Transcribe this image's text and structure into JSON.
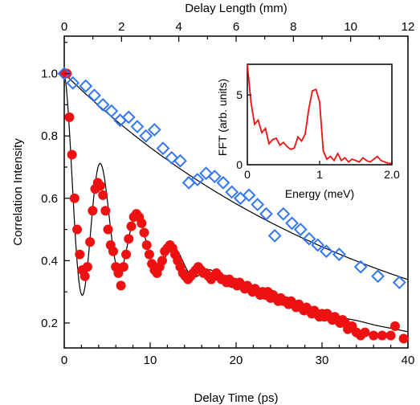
{
  "colors": {
    "red_series": "#ee1111",
    "blue_series": "#3377ee",
    "fit_line": "#000000",
    "inset_line": "#ee1111"
  },
  "chart_data": [
    {
      "type": "scatter",
      "xlabel": "Delay Time (ps)",
      "x2label": "Delay Length (mm)",
      "ylabel": "Correlation Intensity",
      "xlim": [
        0,
        40
      ],
      "x2lim": [
        0,
        12
      ],
      "ylim": [
        0.12,
        1.12
      ],
      "xticks": [
        0,
        10,
        20,
        30,
        40
      ],
      "x2ticks": [
        0,
        2,
        4,
        6,
        8,
        10,
        12
      ],
      "yticks": [
        0.2,
        0.4,
        0.6,
        0.8,
        1.0
      ],
      "ytick_labels": [
        "0.2",
        "0.4",
        "0.6",
        "0.8",
        "1.0"
      ],
      "xtick_labels": [
        "0",
        "10",
        "20",
        "30",
        "40"
      ],
      "x2tick_labels": [
        "0",
        "2",
        "4",
        "6",
        "8",
        "10",
        "12"
      ],
      "grid": false,
      "series": [
        {
          "marker": "circle",
          "color": "#ee1111",
          "points": [
            [
              0.0,
              1.0
            ],
            [
              0.3,
              1.0
            ],
            [
              0.6,
              0.86
            ],
            [
              0.9,
              0.74
            ],
            [
              1.2,
              0.6
            ],
            [
              1.5,
              0.5
            ],
            [
              1.8,
              0.42
            ],
            [
              2.1,
              0.37
            ],
            [
              2.4,
              0.35
            ],
            [
              2.7,
              0.38
            ],
            [
              3.0,
              0.46
            ],
            [
              3.3,
              0.56
            ],
            [
              3.6,
              0.63
            ],
            [
              3.9,
              0.65
            ],
            [
              4.2,
              0.64
            ],
            [
              4.5,
              0.61
            ],
            [
              4.8,
              0.56
            ],
            [
              5.1,
              0.5
            ],
            [
              5.4,
              0.45
            ],
            [
              5.7,
              0.43
            ],
            [
              6.0,
              0.38
            ],
            [
              6.3,
              0.36
            ],
            [
              6.6,
              0.32
            ],
            [
              6.9,
              0.38
            ],
            [
              7.2,
              0.42
            ],
            [
              7.5,
              0.47
            ],
            [
              7.8,
              0.51
            ],
            [
              8.1,
              0.54
            ],
            [
              8.4,
              0.55
            ],
            [
              8.7,
              0.54
            ],
            [
              9.0,
              0.52
            ],
            [
              9.3,
              0.49
            ],
            [
              9.6,
              0.45
            ],
            [
              9.9,
              0.42
            ],
            [
              10.2,
              0.39
            ],
            [
              10.5,
              0.37
            ],
            [
              10.8,
              0.36
            ],
            [
              11.1,
              0.38
            ],
            [
              11.4,
              0.4
            ],
            [
              11.7,
              0.43
            ],
            [
              12.0,
              0.44
            ],
            [
              12.3,
              0.45
            ],
            [
              12.6,
              0.44
            ],
            [
              12.9,
              0.42
            ],
            [
              13.2,
              0.4
            ],
            [
              13.5,
              0.38
            ],
            [
              13.8,
              0.36
            ],
            [
              14.1,
              0.35
            ],
            [
              14.4,
              0.34
            ],
            [
              14.7,
              0.35
            ],
            [
              15.0,
              0.36
            ],
            [
              15.3,
              0.37
            ],
            [
              15.6,
              0.38
            ],
            [
              15.9,
              0.37
            ],
            [
              16.2,
              0.36
            ],
            [
              16.5,
              0.36
            ],
            [
              16.8,
              0.35
            ],
            [
              17.1,
              0.34
            ],
            [
              17.4,
              0.35
            ],
            [
              17.7,
              0.36
            ],
            [
              18.0,
              0.35
            ],
            [
              18.3,
              0.34
            ],
            [
              18.6,
              0.34
            ],
            [
              18.9,
              0.33
            ],
            [
              19.2,
              0.34
            ],
            [
              19.5,
              0.33
            ],
            [
              19.8,
              0.33
            ],
            [
              20.1,
              0.32
            ],
            [
              20.4,
              0.33
            ],
            [
              20.7,
              0.32
            ],
            [
              21.0,
              0.31
            ],
            [
              21.3,
              0.32
            ],
            [
              21.6,
              0.31
            ],
            [
              21.9,
              0.3
            ],
            [
              22.2,
              0.31
            ],
            [
              22.5,
              0.3
            ],
            [
              22.8,
              0.29
            ],
            [
              23.1,
              0.3
            ],
            [
              23.4,
              0.29
            ],
            [
              23.7,
              0.3
            ],
            [
              24.0,
              0.28
            ],
            [
              24.3,
              0.29
            ],
            [
              24.6,
              0.28
            ],
            [
              24.9,
              0.27
            ],
            [
              25.2,
              0.28
            ],
            [
              25.5,
              0.27
            ],
            [
              25.8,
              0.27
            ],
            [
              26.1,
              0.26
            ],
            [
              26.4,
              0.27
            ],
            [
              26.7,
              0.26
            ],
            [
              27.0,
              0.25
            ],
            [
              27.3,
              0.26
            ],
            [
              27.6,
              0.25
            ],
            [
              27.9,
              0.24
            ],
            [
              28.2,
              0.25
            ],
            [
              28.5,
              0.24
            ],
            [
              28.8,
              0.23
            ],
            [
              29.1,
              0.24
            ],
            [
              29.4,
              0.23
            ],
            [
              29.7,
              0.22
            ],
            [
              30.0,
              0.23
            ],
            [
              30.3,
              0.22
            ],
            [
              30.6,
              0.23
            ],
            [
              30.9,
              0.22
            ],
            [
              31.2,
              0.21
            ],
            [
              31.5,
              0.22
            ],
            [
              31.8,
              0.21
            ],
            [
              32.1,
              0.2
            ],
            [
              32.4,
              0.21
            ],
            [
              32.7,
              0.2
            ],
            [
              33.0,
              0.18
            ],
            [
              33.5,
              0.19
            ],
            [
              34.0,
              0.17
            ],
            [
              34.5,
              0.16
            ],
            [
              35.0,
              0.17
            ],
            [
              36.0,
              0.16
            ],
            [
              37.0,
              0.16
            ],
            [
              38.0,
              0.16
            ],
            [
              38.5,
              0.19
            ],
            [
              39.5,
              0.15
            ]
          ]
        },
        {
          "marker": "diamond-open",
          "color": "#3377ee",
          "points": [
            [
              0.0,
              1.0
            ],
            [
              1.0,
              0.97
            ],
            [
              2.5,
              0.96
            ],
            [
              3.5,
              0.93
            ],
            [
              4.5,
              0.9
            ],
            [
              5.5,
              0.88
            ],
            [
              6.5,
              0.85
            ],
            [
              7.5,
              0.86
            ],
            [
              8.5,
              0.83
            ],
            [
              9.5,
              0.8
            ],
            [
              10.5,
              0.82
            ],
            [
              11.5,
              0.76
            ],
            [
              12.5,
              0.73
            ],
            [
              13.5,
              0.72
            ],
            [
              14.5,
              0.65
            ],
            [
              15.5,
              0.66
            ],
            [
              16.5,
              0.68
            ],
            [
              17.5,
              0.67
            ],
            [
              18.5,
              0.65
            ],
            [
              19.5,
              0.62
            ],
            [
              20.5,
              0.6
            ],
            [
              21.5,
              0.61
            ],
            [
              22.5,
              0.58
            ],
            [
              23.5,
              0.55
            ],
            [
              24.5,
              0.48
            ],
            [
              25.5,
              0.55
            ],
            [
              26.5,
              0.52
            ],
            [
              27.5,
              0.5
            ],
            [
              28.5,
              0.47
            ],
            [
              29.5,
              0.45
            ],
            [
              30.5,
              0.43
            ],
            [
              32.0,
              0.42
            ],
            [
              34.5,
              0.38
            ],
            [
              36.5,
              0.35
            ],
            [
              39.0,
              0.33
            ]
          ]
        }
      ],
      "fits": [
        {
          "kind": "exp",
          "a": 1.0,
          "tau": 37.0
        },
        {
          "kind": "damped",
          "tau": 32.0,
          "amp": 0.4,
          "gamma": 0.18,
          "period": 4.3
        }
      ]
    },
    {
      "type": "line",
      "xlabel": "Energy (meV)",
      "ylabel": "FFT (arb. units)",
      "xlim": [
        0,
        2.0
      ],
      "ylim": [
        0,
        7.2
      ],
      "xticks": [
        0,
        1,
        2.0
      ],
      "xtick_labels": [
        "0",
        "1",
        "2.0"
      ],
      "yticks": [
        0,
        5
      ],
      "ytick_labels": [
        "0",
        "5"
      ],
      "color": "#ee1111",
      "x": [
        0.0,
        0.05,
        0.1,
        0.15,
        0.2,
        0.25,
        0.3,
        0.35,
        0.4,
        0.45,
        0.5,
        0.55,
        0.6,
        0.65,
        0.7,
        0.75,
        0.8,
        0.85,
        0.9,
        0.95,
        1.0,
        1.05,
        1.1,
        1.15,
        1.2,
        1.25,
        1.3,
        1.35,
        1.4,
        1.45,
        1.5,
        1.55,
        1.6,
        1.65,
        1.7,
        1.75,
        1.8,
        1.85,
        1.9,
        1.95,
        2.0
      ],
      "y": [
        7.2,
        4.5,
        2.9,
        3.2,
        2.3,
        2.6,
        1.5,
        1.8,
        1.9,
        1.4,
        1.6,
        1.3,
        1.1,
        1.2,
        2.0,
        1.7,
        2.2,
        4.0,
        5.3,
        5.4,
        4.5,
        1.0,
        0.4,
        0.6,
        0.3,
        0.8,
        0.3,
        0.5,
        0.2,
        0.4,
        0.3,
        0.2,
        0.5,
        0.3,
        0.2,
        0.4,
        0.6,
        0.3,
        0.2,
        0.1,
        0.1
      ]
    }
  ]
}
